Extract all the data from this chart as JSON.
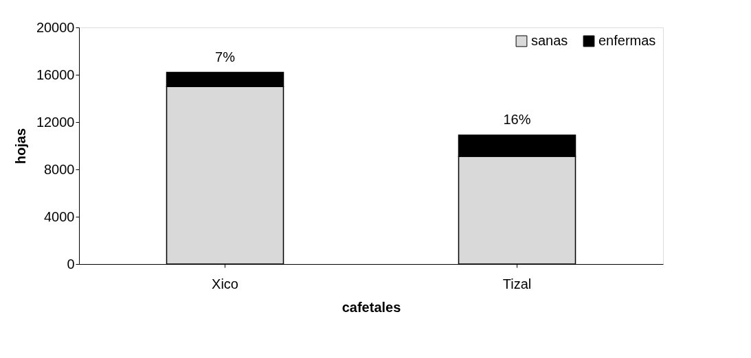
{
  "chart_data": {
    "type": "bar",
    "stacked": true,
    "xlabel": "cafetales",
    "ylabel": "hojas",
    "categories": [
      "Xico",
      "Tizal"
    ],
    "series": [
      {
        "name": "sanas",
        "color": "#d9d9d9",
        "values": [
          15000,
          9100
        ]
      },
      {
        "name": "enfermas",
        "color": "#000000",
        "values": [
          1200,
          1800
        ]
      }
    ],
    "ylim": [
      0,
      20000
    ],
    "yticks": [
      0,
      4000,
      8000,
      12000,
      16000,
      20000
    ],
    "annotations": [
      {
        "text": "7%",
        "x": "Xico",
        "y": 16200
      },
      {
        "text": "16%",
        "x": "Tizal",
        "y": 10900
      }
    ],
    "grid": false,
    "legend": "top right"
  }
}
